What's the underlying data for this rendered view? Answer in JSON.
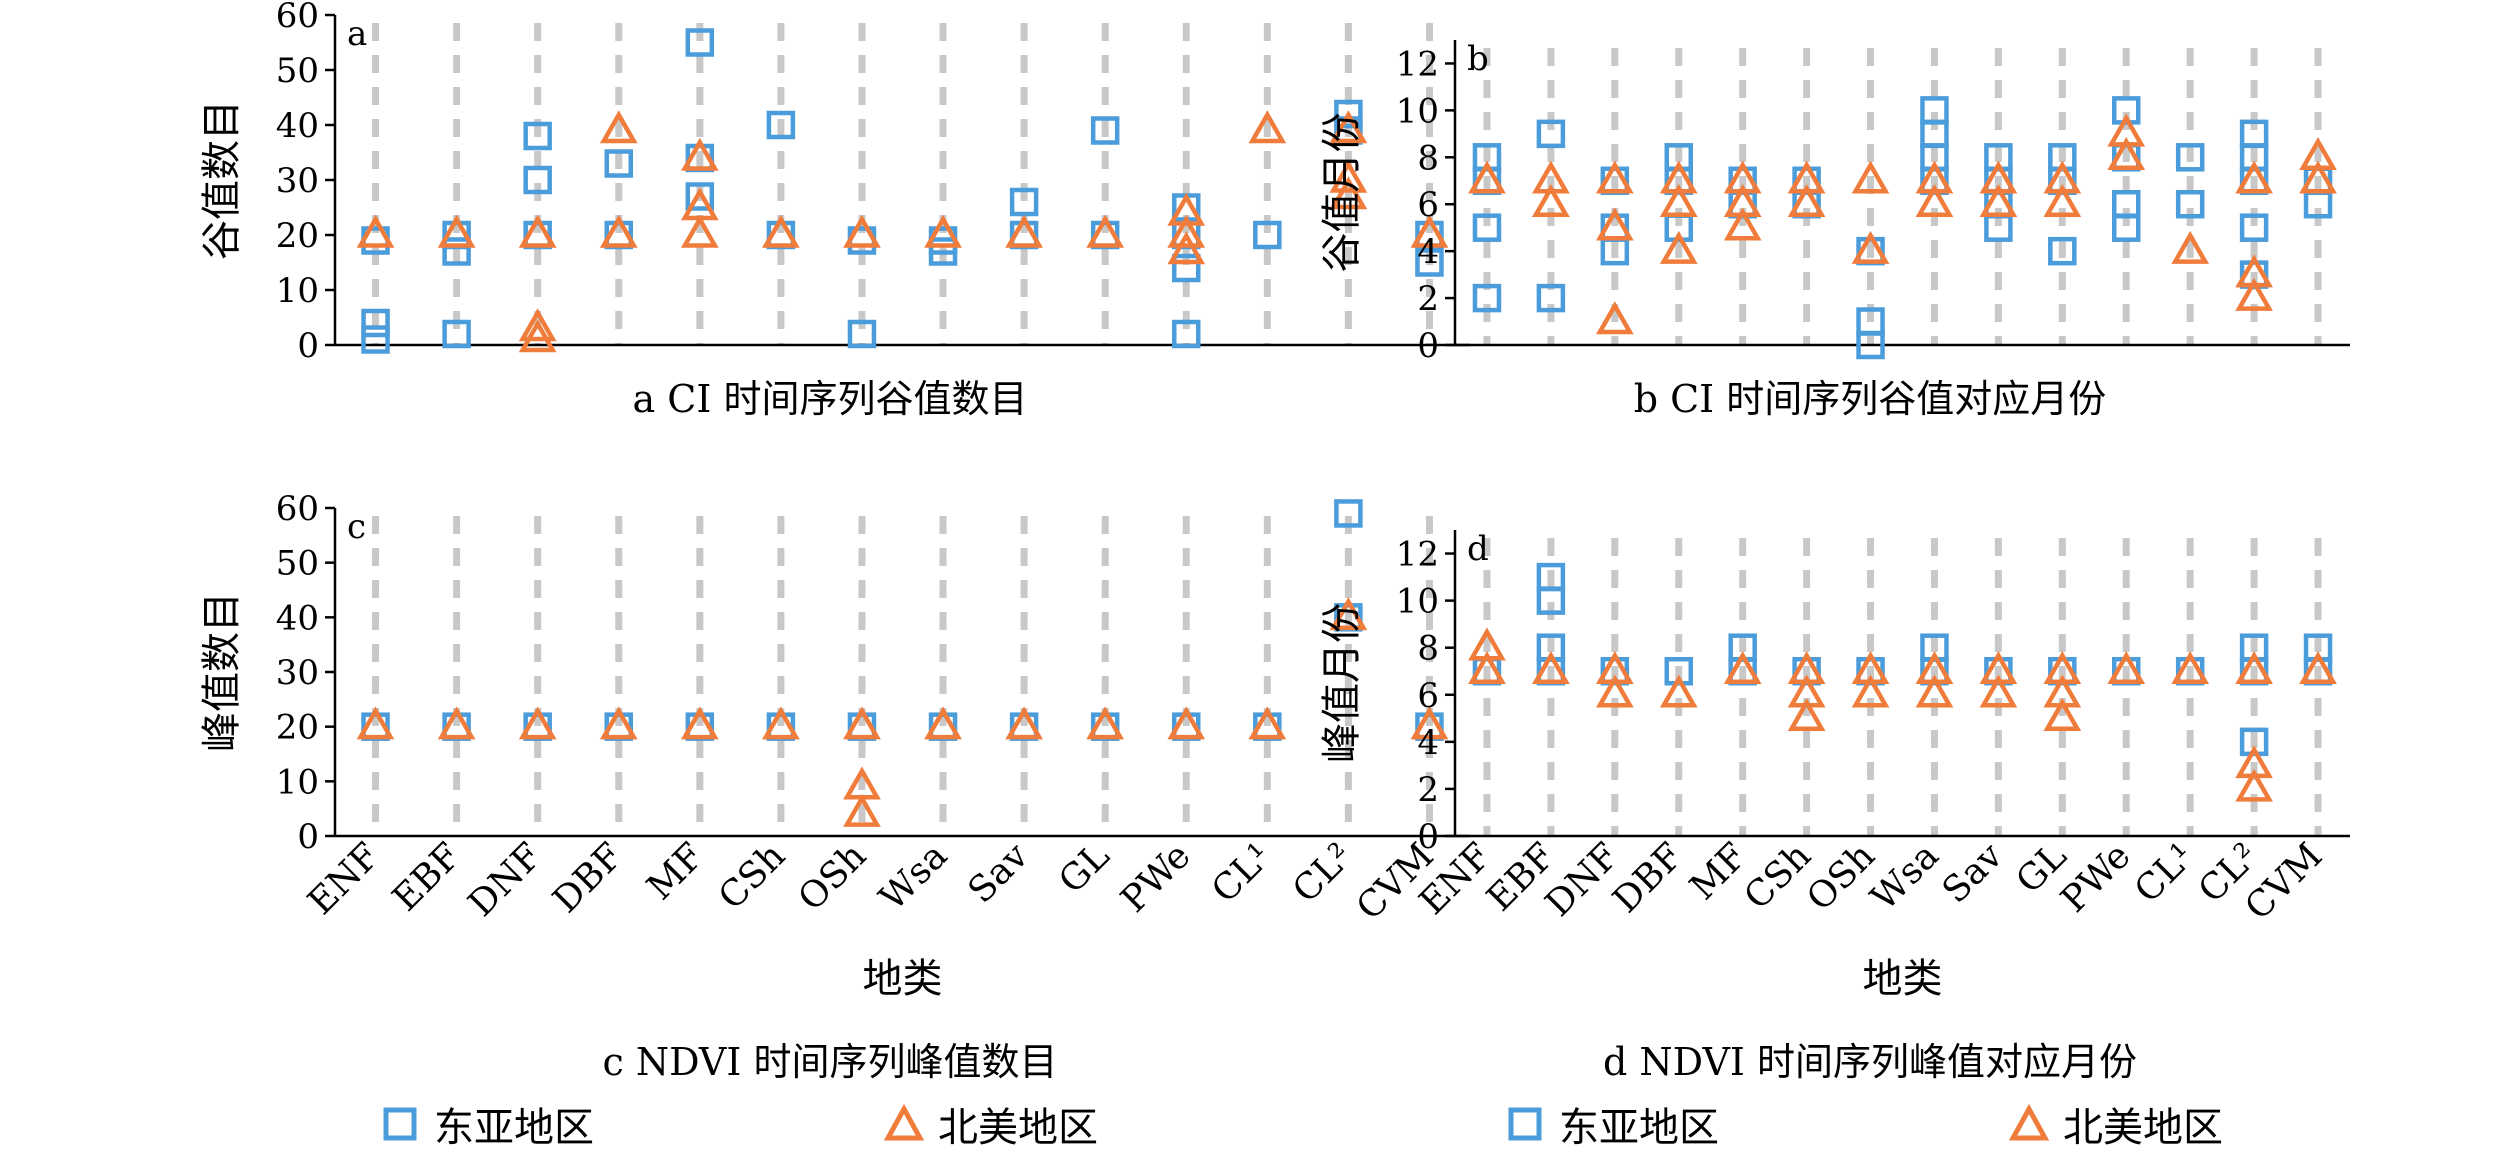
{
  "colors": {
    "east_asia": "#4b9cdb",
    "north_america": "#f07c3c",
    "guide": "#c8c8c8"
  },
  "legend_rows": [
    {
      "east_asia_label": "东亚地区",
      "north_america_label": "北美地区"
    },
    {
      "east_asia_label": "东亚地区",
      "north_america_label": "北美地区"
    }
  ],
  "shared": {
    "categories": [
      "ENF",
      "EBF",
      "DNF",
      "DBF",
      "MF",
      "CSh",
      "OSh",
      "Wsa",
      "Sav",
      "GL",
      "PWe",
      "CL¹",
      "CL²",
      "CVM"
    ],
    "xlabel": "地类"
  },
  "chart_data": [
    {
      "type": "scatter",
      "panel_letter": "a",
      "title": "a CI 时间序列谷值数目",
      "ylabel": "谷值数目",
      "ylim": [
        0,
        60
      ],
      "yticks": [
        0,
        10,
        20,
        30,
        40,
        50,
        60
      ],
      "categories": [
        "ENF",
        "EBF",
        "DNF",
        "DBF",
        "MF",
        "CSh",
        "OSh",
        "Wsa",
        "Sav",
        "GL",
        "PWe",
        "CL¹",
        "CL²",
        "CVM"
      ],
      "series": [
        {
          "name": "东亚地区",
          "marker": "square",
          "points": [
            [
              "ENF",
              1
            ],
            [
              "ENF",
              4
            ],
            [
              "ENF",
              19
            ],
            [
              "EBF",
              2
            ],
            [
              "EBF",
              17
            ],
            [
              "EBF",
              20
            ],
            [
              "DNF",
              20
            ],
            [
              "DNF",
              30
            ],
            [
              "DNF",
              38
            ],
            [
              "DBF",
              20
            ],
            [
              "DBF",
              33
            ],
            [
              "MF",
              27
            ],
            [
              "MF",
              34
            ],
            [
              "MF",
              55
            ],
            [
              "CSh",
              20
            ],
            [
              "CSh",
              40
            ],
            [
              "OSh",
              2
            ],
            [
              "OSh",
              19
            ],
            [
              "Wsa",
              17
            ],
            [
              "Wsa",
              19
            ],
            [
              "Sav",
              20
            ],
            [
              "Sav",
              26
            ],
            [
              "GL",
              20
            ],
            [
              "GL",
              39
            ],
            [
              "PWe",
              2
            ],
            [
              "PWe",
              14
            ],
            [
              "PWe",
              20
            ],
            [
              "PWe",
              25
            ],
            [
              "CL¹",
              20
            ],
            [
              "CL²",
              39
            ],
            [
              "CL²",
              42
            ],
            [
              "CVM",
              15
            ],
            [
              "CVM",
              20
            ]
          ]
        },
        {
          "name": "北美地区",
          "marker": "triangle",
          "points": [
            [
              "ENF",
              20
            ],
            [
              "EBF",
              20
            ],
            [
              "DNF",
              1
            ],
            [
              "DNF",
              3
            ],
            [
              "DNF",
              20
            ],
            [
              "DBF",
              20
            ],
            [
              "DBF",
              39
            ],
            [
              "MF",
              20
            ],
            [
              "MF",
              25
            ],
            [
              "MF",
              34
            ],
            [
              "CSh",
              20
            ],
            [
              "OSh",
              20
            ],
            [
              "Wsa",
              20
            ],
            [
              "Sav",
              20
            ],
            [
              "GL",
              20
            ],
            [
              "PWe",
              17
            ],
            [
              "PWe",
              20
            ],
            [
              "PWe",
              24
            ],
            [
              "CL¹",
              39
            ],
            [
              "CL²",
              27
            ],
            [
              "CL²",
              30
            ],
            [
              "CL²",
              39
            ],
            [
              "CVM",
              20
            ]
          ]
        }
      ]
    },
    {
      "type": "scatter",
      "panel_letter": "b",
      "title": "b CI 时间序列谷值对应月份",
      "ylabel": "谷值月份",
      "ylim": [
        0,
        13
      ],
      "yticks": [
        0,
        2,
        4,
        6,
        8,
        10,
        12
      ],
      "categories": [
        "ENF",
        "EBF",
        "DNF",
        "DBF",
        "MF",
        "CSh",
        "OSh",
        "Wsa",
        "Sav",
        "GL",
        "PWe",
        "CL¹",
        "CL²",
        "CVM"
      ],
      "series": [
        {
          "name": "东亚地区",
          "marker": "square",
          "points": [
            [
              "ENF",
              2
            ],
            [
              "ENF",
              5
            ],
            [
              "ENF",
              7
            ],
            [
              "ENF",
              8
            ],
            [
              "EBF",
              2
            ],
            [
              "EBF",
              9
            ],
            [
              "DNF",
              4
            ],
            [
              "DNF",
              5
            ],
            [
              "DNF",
              7
            ],
            [
              "DBF",
              5
            ],
            [
              "DBF",
              7
            ],
            [
              "DBF",
              8
            ],
            [
              "MF",
              6
            ],
            [
              "MF",
              7
            ],
            [
              "CSh",
              6
            ],
            [
              "CSh",
              7
            ],
            [
              "OSh",
              0
            ],
            [
              "OSh",
              1
            ],
            [
              "OSh",
              4
            ],
            [
              "Wsa",
              7
            ],
            [
              "Wsa",
              8
            ],
            [
              "Wsa",
              9
            ],
            [
              "Wsa",
              10
            ],
            [
              "Sav",
              5
            ],
            [
              "Sav",
              6
            ],
            [
              "Sav",
              7
            ],
            [
              "Sav",
              8
            ],
            [
              "GL",
              4
            ],
            [
              "GL",
              7
            ],
            [
              "GL",
              8
            ],
            [
              "PWe",
              5
            ],
            [
              "PWe",
              6
            ],
            [
              "PWe",
              8
            ],
            [
              "PWe",
              10
            ],
            [
              "CL¹",
              6
            ],
            [
              "CL¹",
              8
            ],
            [
              "CL²",
              3
            ],
            [
              "CL²",
              5
            ],
            [
              "CL²",
              7
            ],
            [
              "CL²",
              8
            ],
            [
              "CL²",
              9
            ],
            [
              "CVM",
              6
            ],
            [
              "CVM",
              7
            ]
          ]
        },
        {
          "name": "北美地区",
          "marker": "triangle",
          "points": [
            [
              "ENF",
              7
            ],
            [
              "EBF",
              6
            ],
            [
              "EBF",
              7
            ],
            [
              "DNF",
              1
            ],
            [
              "DNF",
              5
            ],
            [
              "DNF",
              7
            ],
            [
              "DBF",
              4
            ],
            [
              "DBF",
              6
            ],
            [
              "DBF",
              7
            ],
            [
              "MF",
              5
            ],
            [
              "MF",
              6
            ],
            [
              "MF",
              7
            ],
            [
              "CSh",
              6
            ],
            [
              "CSh",
              7
            ],
            [
              "OSh",
              4
            ],
            [
              "OSh",
              7
            ],
            [
              "Wsa",
              6
            ],
            [
              "Wsa",
              7
            ],
            [
              "Sav",
              6
            ],
            [
              "Sav",
              7
            ],
            [
              "GL",
              6
            ],
            [
              "GL",
              7
            ],
            [
              "PWe",
              8
            ],
            [
              "PWe",
              9
            ],
            [
              "CL¹",
              4
            ],
            [
              "CL²",
              2
            ],
            [
              "CL²",
              3
            ],
            [
              "CL²",
              7
            ],
            [
              "CVM",
              7
            ],
            [
              "CVM",
              8
            ]
          ]
        }
      ]
    },
    {
      "type": "scatter",
      "panel_letter": "c",
      "title": "c NDVI 时间序列峰值数目",
      "ylabel": "峰值数目",
      "ylim": [
        0,
        60
      ],
      "yticks": [
        0,
        10,
        20,
        30,
        40,
        50,
        60
      ],
      "categories": [
        "ENF",
        "EBF",
        "DNF",
        "DBF",
        "MF",
        "CSh",
        "OSh",
        "Wsa",
        "Sav",
        "GL",
        "PWe",
        "CL¹",
        "CL²",
        "CVM"
      ],
      "series": [
        {
          "name": "东亚地区",
          "marker": "square",
          "points": [
            [
              "ENF",
              20
            ],
            [
              "EBF",
              20
            ],
            [
              "DNF",
              20
            ],
            [
              "DBF",
              20
            ],
            [
              "MF",
              20
            ],
            [
              "CSh",
              20
            ],
            [
              "OSh",
              20
            ],
            [
              "Wsa",
              20
            ],
            [
              "Sav",
              20
            ],
            [
              "GL",
              20
            ],
            [
              "PWe",
              20
            ],
            [
              "CL¹",
              20
            ],
            [
              "CL²",
              40
            ],
            [
              "CL²",
              59
            ],
            [
              "CVM",
              20
            ]
          ]
        },
        {
          "name": "北美地区",
          "marker": "triangle",
          "points": [
            [
              "ENF",
              20
            ],
            [
              "EBF",
              20
            ],
            [
              "DNF",
              20
            ],
            [
              "DBF",
              20
            ],
            [
              "MF",
              20
            ],
            [
              "CSh",
              20
            ],
            [
              "OSh",
              4
            ],
            [
              "OSh",
              9
            ],
            [
              "OSh",
              20
            ],
            [
              "Wsa",
              20
            ],
            [
              "Sav",
              20
            ],
            [
              "GL",
              20
            ],
            [
              "PWe",
              20
            ],
            [
              "CL¹",
              20
            ],
            [
              "CL²",
              40
            ],
            [
              "CVM",
              20
            ]
          ]
        }
      ]
    },
    {
      "type": "scatter",
      "panel_letter": "d",
      "title": "d NDVI 时间序列峰值对应月份",
      "ylabel": "峰值月份",
      "ylim": [
        0,
        13
      ],
      "yticks": [
        0,
        2,
        4,
        6,
        8,
        10,
        12
      ],
      "categories": [
        "ENF",
        "EBF",
        "DNF",
        "DBF",
        "MF",
        "CSh",
        "OSh",
        "Wsa",
        "Sav",
        "GL",
        "PWe",
        "CL¹",
        "CL²",
        "CVM"
      ],
      "series": [
        {
          "name": "东亚地区",
          "marker": "square",
          "points": [
            [
              "ENF",
              7
            ],
            [
              "EBF",
              7
            ],
            [
              "EBF",
              8
            ],
            [
              "EBF",
              10
            ],
            [
              "EBF",
              11
            ],
            [
              "DNF",
              7
            ],
            [
              "DBF",
              7
            ],
            [
              "MF",
              7
            ],
            [
              "MF",
              8
            ],
            [
              "CSh",
              7
            ],
            [
              "OSh",
              7
            ],
            [
              "Wsa",
              7
            ],
            [
              "Wsa",
              8
            ],
            [
              "Sav",
              7
            ],
            [
              "GL",
              7
            ],
            [
              "PWe",
              7
            ],
            [
              "CL¹",
              7
            ],
            [
              "CL²",
              4
            ],
            [
              "CL²",
              7
            ],
            [
              "CL²",
              8
            ],
            [
              "CVM",
              7
            ],
            [
              "CVM",
              8
            ]
          ]
        },
        {
          "name": "北美地区",
          "marker": "triangle",
          "points": [
            [
              "ENF",
              7
            ],
            [
              "ENF",
              8
            ],
            [
              "EBF",
              7
            ],
            [
              "DNF",
              6
            ],
            [
              "DNF",
              7
            ],
            [
              "DBF",
              6
            ],
            [
              "MF",
              7
            ],
            [
              "CSh",
              5
            ],
            [
              "CSh",
              6
            ],
            [
              "CSh",
              7
            ],
            [
              "OSh",
              6
            ],
            [
              "OSh",
              7
            ],
            [
              "Wsa",
              6
            ],
            [
              "Wsa",
              7
            ],
            [
              "Sav",
              6
            ],
            [
              "Sav",
              7
            ],
            [
              "GL",
              5
            ],
            [
              "GL",
              6
            ],
            [
              "GL",
              7
            ],
            [
              "PWe",
              7
            ],
            [
              "CL¹",
              7
            ],
            [
              "CL²",
              2
            ],
            [
              "CL²",
              3
            ],
            [
              "CL²",
              7
            ],
            [
              "CVM",
              7
            ]
          ]
        }
      ]
    }
  ]
}
